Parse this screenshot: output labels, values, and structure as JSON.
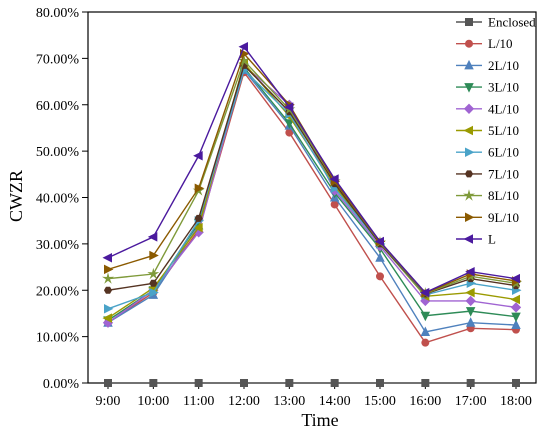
{
  "chart_data": {
    "type": "line",
    "title": "",
    "xlabel": "Time",
    "ylabel": "CWZR",
    "categories": [
      "9:00",
      "10:00",
      "11:00",
      "12:00",
      "13:00",
      "14:00",
      "15:00",
      "16:00",
      "17:00",
      "18:00"
    ],
    "y_tick_labels": [
      "0.00%",
      "10.00%",
      "20.00%",
      "30.00%",
      "40.00%",
      "50.00%",
      "60.00%",
      "70.00%",
      "80.00%"
    ],
    "ylim": [
      0,
      80
    ],
    "y_unit": "percent",
    "grid": false,
    "legend_position": "top-right",
    "series": [
      {
        "name": "Enclosed",
        "color": "#555555",
        "marker": "square",
        "values": [
          0,
          0,
          0,
          0,
          0,
          0,
          0,
          0,
          0,
          0
        ]
      },
      {
        "name": "L/10",
        "color": "#c0504d",
        "marker": "circle",
        "values": [
          13.0,
          19.5,
          33.0,
          67.0,
          54.0,
          38.5,
          23.0,
          8.7,
          11.8,
          11.5
        ]
      },
      {
        "name": "2L/10",
        "color": "#4f81bd",
        "marker": "triangle-up",
        "values": [
          13.0,
          19.0,
          34.0,
          67.5,
          55.5,
          40.0,
          27.0,
          11.0,
          13.0,
          12.5
        ]
      },
      {
        "name": "3L/10",
        "color": "#2e8b57",
        "marker": "triangle-down",
        "values": [
          13.5,
          20.0,
          34.5,
          68.0,
          56.0,
          41.0,
          29.0,
          14.5,
          15.5,
          14.3
        ]
      },
      {
        "name": "4L/10",
        "color": "#a064d2",
        "marker": "diamond",
        "values": [
          13.0,
          20.0,
          32.5,
          68.5,
          60.0,
          41.5,
          29.5,
          17.7,
          17.7,
          16.3
        ]
      },
      {
        "name": "5L/10",
        "color": "#9a9a00",
        "marker": "triangle-left",
        "values": [
          14.0,
          20.5,
          33.5,
          69.0,
          57.5,
          42.5,
          30.0,
          18.7,
          19.5,
          18.0
        ]
      },
      {
        "name": "6L/10",
        "color": "#4aa3c8",
        "marker": "triangle-right",
        "values": [
          16.0,
          19.5,
          35.0,
          67.5,
          58.0,
          42.0,
          30.0,
          19.0,
          21.5,
          20.0
        ]
      },
      {
        "name": "7L/10",
        "color": "#553322",
        "marker": "hexagon",
        "values": [
          20.0,
          21.5,
          35.5,
          68.5,
          58.5,
          43.0,
          30.0,
          19.2,
          22.5,
          21.0
        ]
      },
      {
        "name": "8L/10",
        "color": "#7f9a3a",
        "marker": "star",
        "values": [
          22.5,
          23.5,
          41.5,
          69.5,
          59.0,
          43.5,
          30.3,
          19.3,
          23.0,
          21.5
        ]
      },
      {
        "name": "9L/10",
        "color": "#8b5a00",
        "marker": "triangle-right",
        "values": [
          24.5,
          27.5,
          42.0,
          71.0,
          60.0,
          43.5,
          30.5,
          19.4,
          23.5,
          22.0
        ]
      },
      {
        "name": "L",
        "color": "#4b1a9e",
        "marker": "triangle-left",
        "values": [
          27.0,
          31.5,
          49.0,
          72.5,
          59.5,
          44.0,
          30.5,
          19.5,
          24.0,
          22.5
        ]
      }
    ]
  }
}
